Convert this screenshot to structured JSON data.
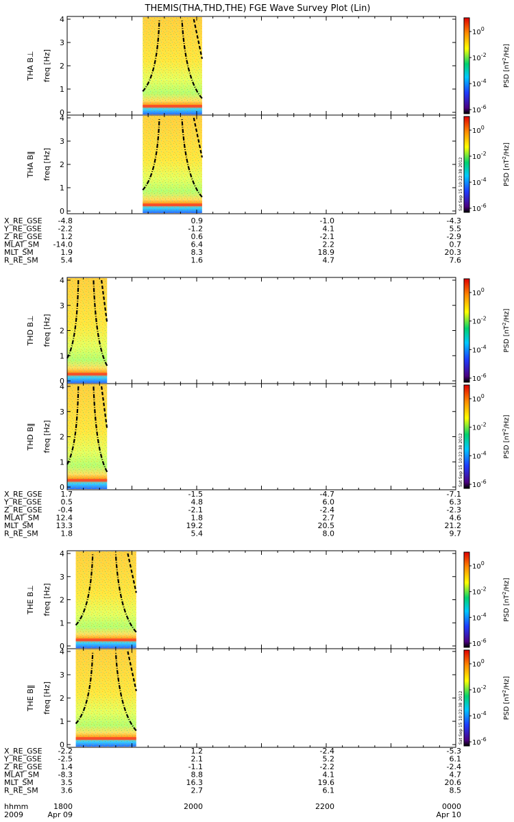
{
  "title": "THEMIS(THA,THD,THE) FGE Wave Survey Plot (Lin)",
  "timestamp": "Sat Sep 15 10:22:38 2012",
  "colorbar": {
    "label_prefix": "PSD [nT",
    "label_sup": "2",
    "label_suffix": "/Hz]",
    "ticks": [
      "10",
      "10",
      "10",
      "10"
    ],
    "tick_exponents": [
      "0",
      "-2",
      "-4",
      "-6"
    ],
    "colors": [
      "#000000",
      "#4b0082",
      "#1e3cff",
      "#00c8ff",
      "#00d26e",
      "#ffff00",
      "#ff8c00",
      "#e00000"
    ]
  },
  "chart_data": {
    "type": "heatmap",
    "panels": [
      {
        "probe": "THA",
        "ylabel": "THA B⊥",
        "unit": "freq [Hz]",
        "data_start": "1910",
        "data_end": "2005",
        "ylim": [
          0,
          4
        ]
      },
      {
        "probe": "THA",
        "ylabel": "THA B‖",
        "unit": "freq [Hz]",
        "data_start": "1910",
        "data_end": "2005",
        "ylim": [
          0,
          4
        ]
      },
      {
        "probe": "THD",
        "ylabel": "THD B⊥",
        "unit": "freq [Hz]",
        "data_start": "1800",
        "data_end": "1837",
        "ylim": [
          0,
          4
        ]
      },
      {
        "probe": "THD",
        "ylabel": "THD B‖",
        "unit": "freq [Hz]",
        "data_start": "1800",
        "data_end": "1837",
        "ylim": [
          0,
          4
        ]
      },
      {
        "probe": "THE",
        "ylabel": "THE B⊥",
        "unit": "freq [Hz]",
        "data_start": "1808",
        "data_end": "1904",
        "ylim": [
          0,
          4
        ]
      },
      {
        "probe": "THE",
        "ylabel": "THE B‖",
        "unit": "freq [Hz]",
        "data_start": "1808",
        "data_end": "1904",
        "ylim": [
          0,
          4
        ]
      }
    ],
    "yticks": [
      "0",
      "1",
      "2",
      "3",
      "4"
    ],
    "ephemeris": [
      {
        "probe": "THA",
        "rows": [
          {
            "label": "X_RE_GSE",
            "values": [
              "-4.8",
              "0.9",
              "-1.0",
              "-4.3"
            ]
          },
          {
            "label": "Y_RE_GSE",
            "values": [
              "-2.2",
              "-1.2",
              "4.1",
              "5.5"
            ]
          },
          {
            "label": "Z_RE_GSE",
            "values": [
              "1.2",
              "0.6",
              "-2.1",
              "-2.9"
            ]
          },
          {
            "label": "MLAT_SM",
            "values": [
              "-14.0",
              "6.4",
              "2.2",
              "0.7"
            ]
          },
          {
            "label": "MLT_SM",
            "values": [
              "1.9",
              "8.3",
              "18.9",
              "20.3"
            ]
          },
          {
            "label": "R_RE_SM",
            "values": [
              "5.4",
              "1.6",
              "4.7",
              "7.6"
            ]
          }
        ]
      },
      {
        "probe": "THD",
        "rows": [
          {
            "label": "X_RE_GSE",
            "values": [
              "1.7",
              "-1.5",
              "-4.7",
              "-7.1"
            ]
          },
          {
            "label": "Y_RE_GSE",
            "values": [
              "0.5",
              "4.8",
              "6.0",
              "6.3"
            ]
          },
          {
            "label": "Z_RE_GSE",
            "values": [
              "-0.4",
              "-2.1",
              "-2.4",
              "-2.3"
            ]
          },
          {
            "label": "MLAT_SM",
            "values": [
              "12.4",
              "1.8",
              "2.7",
              "4.6"
            ]
          },
          {
            "label": "MLT_SM",
            "values": [
              "13.3",
              "19.2",
              "20.5",
              "21.2"
            ]
          },
          {
            "label": "R_RE_SM",
            "values": [
              "1.8",
              "5.4",
              "8.0",
              "9.7"
            ]
          }
        ]
      },
      {
        "probe": "THE",
        "rows": [
          {
            "label": "X_RE_GSE",
            "values": [
              "-2.2",
              "1.2",
              "-2.4",
              "-5.3"
            ]
          },
          {
            "label": "Y_RE_GSE",
            "values": [
              "-2.5",
              "2.1",
              "5.2",
              "6.1"
            ]
          },
          {
            "label": "Z_RE_GSE",
            "values": [
              "1.4",
              "-1.1",
              "-2.2",
              "-2.4"
            ]
          },
          {
            "label": "MLAT_SM",
            "values": [
              "-8.3",
              "8.8",
              "4.1",
              "4.7"
            ]
          },
          {
            "label": "MLT_SM",
            "values": [
              "3.5",
              "16.3",
              "19.6",
              "20.6"
            ]
          },
          {
            "label": "R_RE_SM",
            "values": [
              "3.6",
              "2.7",
              "6.1",
              "8.5"
            ]
          }
        ]
      }
    ],
    "time_axis": {
      "label": "hhmm",
      "ticks": [
        "1800",
        "2000",
        "2200",
        "0000"
      ],
      "year": "2009",
      "date_start": "Apr 09",
      "date_end": "Apr 10"
    }
  }
}
